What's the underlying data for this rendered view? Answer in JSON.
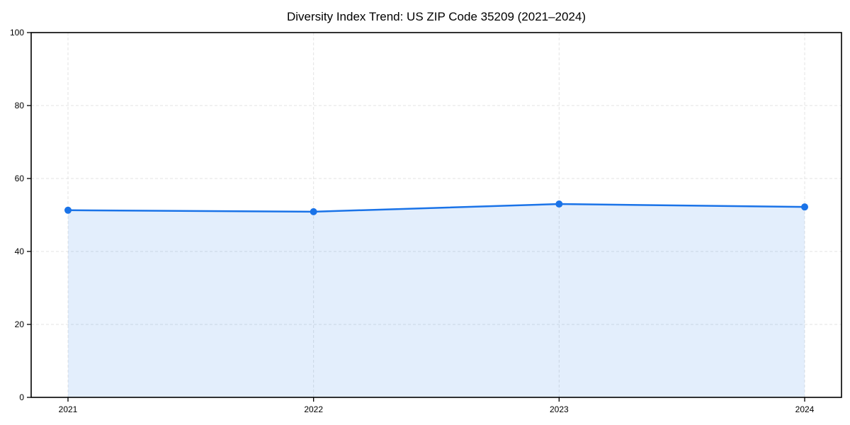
{
  "chart_data": {
    "type": "line",
    "title": "Diversity Index Trend: US ZIP Code 35209 (2021–2024)",
    "categories": [
      "2021",
      "2022",
      "2023",
      "2024"
    ],
    "series": [
      {
        "name": "Diversity Index",
        "values": [
          51.3,
          50.9,
          53.0,
          52.2
        ]
      }
    ],
    "xlabel": "",
    "ylabel": "",
    "ylim": [
      0,
      100
    ],
    "yticks": [
      0,
      20,
      40,
      60,
      80,
      100
    ],
    "grid": "dashed",
    "legend_position": "none",
    "marker": "circle",
    "area_fill": true,
    "colors": {
      "line": "#1a73e8",
      "marker": "#1a73e8",
      "fill": "rgba(26,115,232,0.12)",
      "grid": "#e0e0e0",
      "axis": "#000000",
      "background": "#ffffff",
      "text": "#000000"
    }
  }
}
